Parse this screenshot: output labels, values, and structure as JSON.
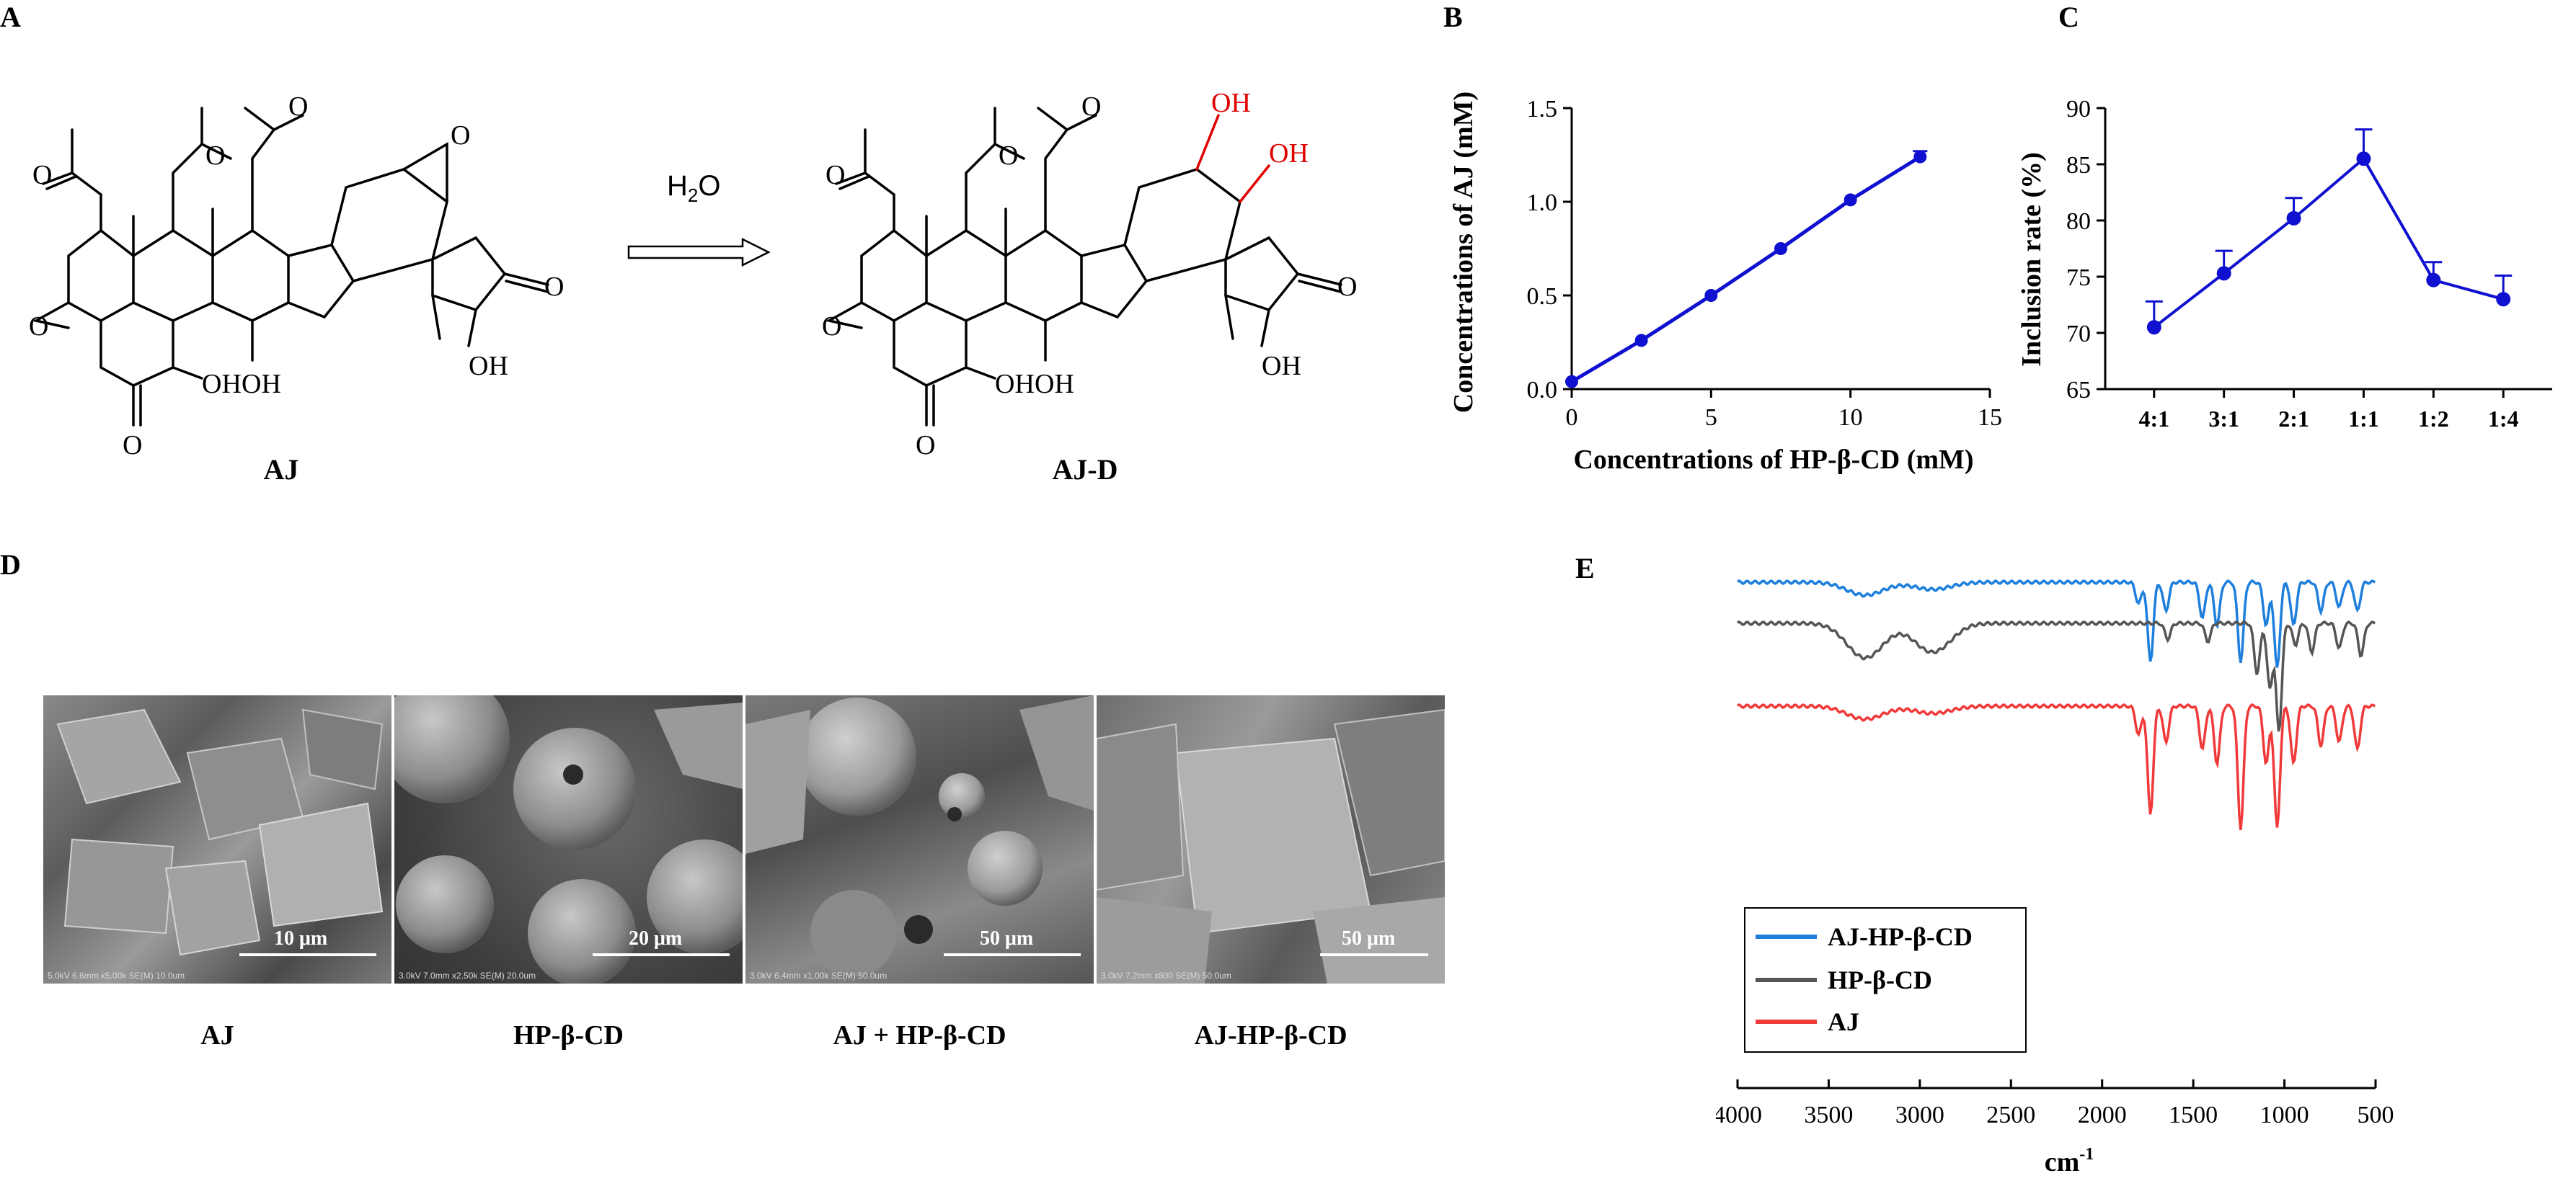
{
  "panels": {
    "A": {
      "label": "A",
      "arrow_text": "H",
      "arrow_sub": "2",
      "arrow_text_end": "O",
      "molecule_left": "AJ",
      "molecule_right": "AJ-D",
      "atoms": {
        "O": "O",
        "OH": "OH"
      }
    },
    "B": "B",
    "C": "C",
    "D": {
      "label": "D",
      "images": [
        {
          "caption": "AJ",
          "scale": "10 μm",
          "meta": "5.0kV 6.6mm x5.00k SE(M)   10.0um"
        },
        {
          "caption": "HP-β-CD",
          "scale": "20 μm",
          "meta": "3.0kV 7.0mm x2.50k SE(M)   20.0um"
        },
        {
          "caption": "AJ + HP-β-CD",
          "scale": "50 μm",
          "meta": "3.0kV 6.4mm x1.00k SE(M)   50.0um"
        },
        {
          "caption": "AJ-HP-β-CD",
          "scale": "50 μm",
          "meta": "3.0kV 7.2mm x800 SE(M)   50.0um"
        }
      ]
    },
    "E": "E"
  },
  "chart_data": [
    {
      "panel": "B",
      "type": "line",
      "xlabel": "Concentrations  of HP-β-CD (mM)",
      "ylabel": "Concentrations of AJ (mM)",
      "xlim": [
        0,
        15
      ],
      "ylim": [
        0,
        1.5
      ],
      "xticks": [
        0,
        5,
        10,
        15
      ],
      "yticks": [
        0.0,
        0.5,
        1.0,
        1.5
      ],
      "ytick_labels": [
        "0.0",
        "0.5",
        "1.0",
        "1.5"
      ],
      "series": [
        {
          "x": [
            0,
            2.5,
            5,
            7.5,
            10,
            12.5
          ],
          "y": [
            0.04,
            0.26,
            0.5,
            0.75,
            1.01,
            1.24
          ],
          "err": [
            0,
            0,
            0,
            0,
            0,
            0.03
          ],
          "color": "#1010d0"
        }
      ]
    },
    {
      "panel": "C",
      "type": "line",
      "xlabel": "",
      "ylabel": "Inclusion  rate (%)",
      "categories": [
        "4:1",
        "3:1",
        "2:1",
        "1:1",
        "1:2",
        "1:4"
      ],
      "ylim": [
        65,
        90
      ],
      "yticks": [
        65,
        70,
        75,
        80,
        85,
        90
      ],
      "series": [
        {
          "values": [
            70.5,
            75.3,
            80.2,
            85.5,
            74.7,
            73.0
          ],
          "err": [
            2.3,
            2.0,
            1.8,
            2.6,
            1.6,
            2.1
          ],
          "color": "#1010d0"
        }
      ]
    },
    {
      "panel": "E",
      "type": "line",
      "xlabel": "cm",
      "xlabel_sup": "-1",
      "xlim": [
        4000,
        500
      ],
      "xticks": [
        4000,
        3500,
        3000,
        2500,
        2000,
        1500,
        1000,
        500
      ],
      "legend_position": "bottom-left",
      "series": [
        {
          "name": "AJ-HP-β-CD",
          "color": "#1f7fdc"
        },
        {
          "name": "HP-β-CD",
          "color": "#555555"
        },
        {
          "name": "AJ",
          "color": "#f03a3a"
        }
      ]
    }
  ]
}
